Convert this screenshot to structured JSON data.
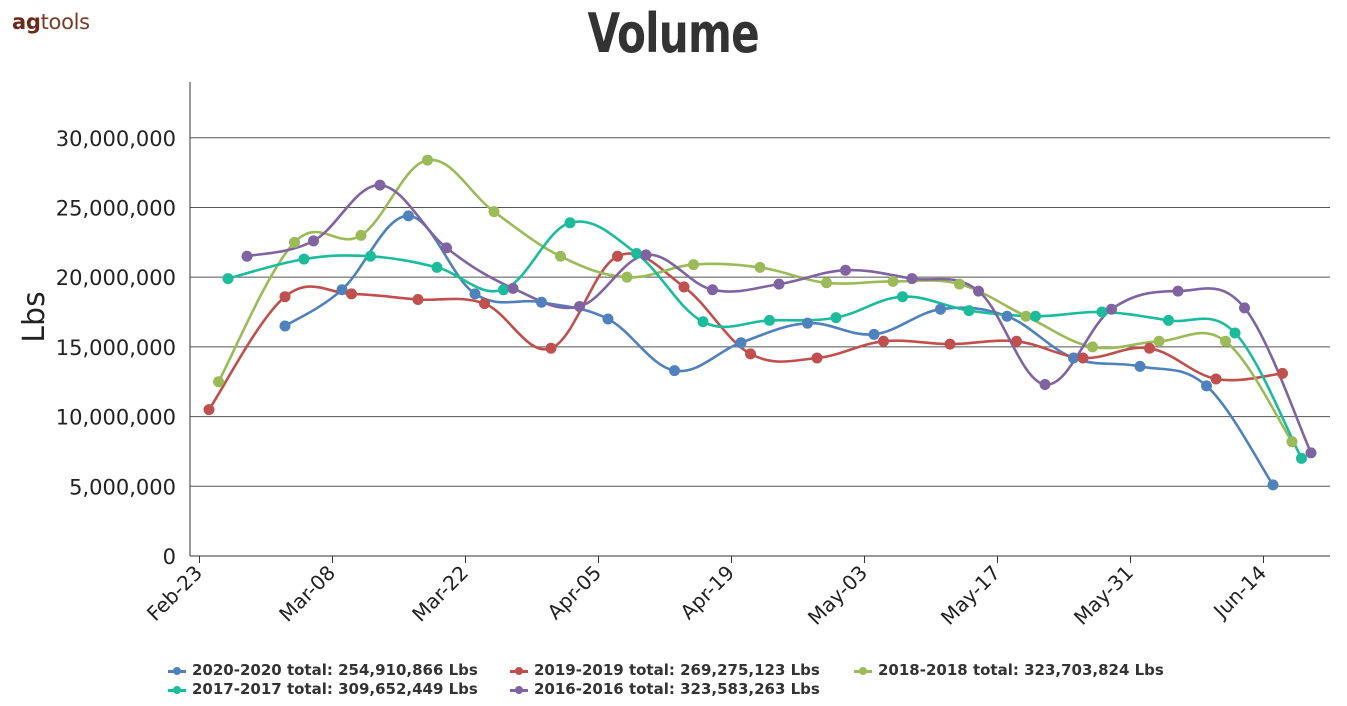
{
  "brand": {
    "part1": "ag",
    "part2": "tools"
  },
  "chart_data": {
    "type": "line",
    "title": "Volume",
    "ylabel": "Lbs",
    "xlabel": "",
    "ylim": [
      0,
      34000000
    ],
    "y_ticks": [
      0,
      5000000,
      10000000,
      15000000,
      20000000,
      25000000,
      30000000
    ],
    "y_tick_labels": [
      "0",
      "5,000,000",
      "10,000,000",
      "15,000,000",
      "20,000,000",
      "25,000,000",
      "30,000,000"
    ],
    "x_axis_start": "2020-02-22",
    "x_axis_end": "2020-06-21",
    "x_ticks": [
      "2020-02-23",
      "2020-03-08",
      "2020-03-22",
      "2020-04-05",
      "2020-04-19",
      "2020-05-03",
      "2020-05-17",
      "2020-05-31",
      "2020-06-14"
    ],
    "x_tick_labels": [
      "Feb-23",
      "Mar-08",
      "Mar-22",
      "Apr-05",
      "Apr-19",
      "May-03",
      "May-17",
      "May-31",
      "Jun-14"
    ],
    "grid": true,
    "legend_position": "bottom",
    "series": [
      {
        "name": "2020-2020",
        "legend_label": "2020-2020 total: 254,910,866 Lbs",
        "color": "#4f81bd",
        "points": [
          {
            "x": "2020-03-03",
            "y": 16500000
          },
          {
            "x": "2020-03-09",
            "y": 19100000
          },
          {
            "x": "2020-03-16",
            "y": 24400000
          },
          {
            "x": "2020-03-23",
            "y": 18800000
          },
          {
            "x": "2020-03-30",
            "y": 18200000
          },
          {
            "x": "2020-04-06",
            "y": 17000000
          },
          {
            "x": "2020-04-13",
            "y": 13300000
          },
          {
            "x": "2020-04-20",
            "y": 15300000
          },
          {
            "x": "2020-04-27",
            "y": 16700000
          },
          {
            "x": "2020-05-04",
            "y": 15900000
          },
          {
            "x": "2020-05-11",
            "y": 17700000
          },
          {
            "x": "2020-05-18",
            "y": 17200000
          },
          {
            "x": "2020-05-25",
            "y": 14200000
          },
          {
            "x": "2020-06-01",
            "y": 13600000
          },
          {
            "x": "2020-06-08",
            "y": 12200000
          },
          {
            "x": "2020-06-15",
            "y": 5100000
          }
        ]
      },
      {
        "name": "2019-2019",
        "legend_label": "2019-2019 total: 269,275,123 Lbs",
        "color": "#c0504d",
        "points": [
          {
            "x": "2020-02-24",
            "y": 10500000
          },
          {
            "x": "2020-03-03",
            "y": 18600000
          },
          {
            "x": "2020-03-10",
            "y": 18800000
          },
          {
            "x": "2020-03-17",
            "y": 18400000
          },
          {
            "x": "2020-03-24",
            "y": 18100000
          },
          {
            "x": "2020-03-31",
            "y": 14900000
          },
          {
            "x": "2020-04-07",
            "y": 21500000
          },
          {
            "x": "2020-04-14",
            "y": 19300000
          },
          {
            "x": "2020-04-21",
            "y": 14500000
          },
          {
            "x": "2020-04-28",
            "y": 14200000
          },
          {
            "x": "2020-05-05",
            "y": 15400000
          },
          {
            "x": "2020-05-12",
            "y": 15200000
          },
          {
            "x": "2020-05-19",
            "y": 15400000
          },
          {
            "x": "2020-05-26",
            "y": 14200000
          },
          {
            "x": "2020-06-02",
            "y": 14900000
          },
          {
            "x": "2020-06-09",
            "y": 12700000
          },
          {
            "x": "2020-06-16",
            "y": 13100000
          }
        ]
      },
      {
        "name": "2018-2018",
        "legend_label": "2018-2018 total: 323,703,824 Lbs",
        "color": "#9bbb59",
        "points": [
          {
            "x": "2020-02-25",
            "y": 12500000
          },
          {
            "x": "2020-03-04",
            "y": 22500000
          },
          {
            "x": "2020-03-11",
            "y": 23000000
          },
          {
            "x": "2020-03-18",
            "y": 28400000
          },
          {
            "x": "2020-03-25",
            "y": 24700000
          },
          {
            "x": "2020-04-01",
            "y": 21500000
          },
          {
            "x": "2020-04-08",
            "y": 20000000
          },
          {
            "x": "2020-04-15",
            "y": 20900000
          },
          {
            "x": "2020-04-22",
            "y": 20700000
          },
          {
            "x": "2020-04-29",
            "y": 19600000
          },
          {
            "x": "2020-05-06",
            "y": 19700000
          },
          {
            "x": "2020-05-13",
            "y": 19500000
          },
          {
            "x": "2020-05-20",
            "y": 17200000
          },
          {
            "x": "2020-05-27",
            "y": 15000000
          },
          {
            "x": "2020-06-03",
            "y": 15400000
          },
          {
            "x": "2020-06-10",
            "y": 15400000
          },
          {
            "x": "2020-06-17",
            "y": 8200000
          }
        ]
      },
      {
        "name": "2017-2017",
        "legend_label": "2017-2017 total: 309,652,449 Lbs",
        "color": "#1abc9c",
        "points": [
          {
            "x": "2020-02-26",
            "y": 19900000
          },
          {
            "x": "2020-03-05",
            "y": 21300000
          },
          {
            "x": "2020-03-12",
            "y": 21500000
          },
          {
            "x": "2020-03-19",
            "y": 20700000
          },
          {
            "x": "2020-03-26",
            "y": 19100000
          },
          {
            "x": "2020-04-02",
            "y": 23900000
          },
          {
            "x": "2020-04-09",
            "y": 21700000
          },
          {
            "x": "2020-04-16",
            "y": 16800000
          },
          {
            "x": "2020-04-23",
            "y": 16900000
          },
          {
            "x": "2020-04-30",
            "y": 17100000
          },
          {
            "x": "2020-05-07",
            "y": 18600000
          },
          {
            "x": "2020-05-14",
            "y": 17600000
          },
          {
            "x": "2020-05-21",
            "y": 17200000
          },
          {
            "x": "2020-05-28",
            "y": 17500000
          },
          {
            "x": "2020-06-04",
            "y": 16900000
          },
          {
            "x": "2020-06-11",
            "y": 16000000
          },
          {
            "x": "2020-06-18",
            "y": 7000000
          }
        ]
      },
      {
        "name": "2016-2016",
        "legend_label": "2016-2016 total: 323,583,263 Lbs",
        "color": "#8064a2",
        "points": [
          {
            "x": "2020-02-28",
            "y": 21500000
          },
          {
            "x": "2020-03-06",
            "y": 22600000
          },
          {
            "x": "2020-03-13",
            "y": 26600000
          },
          {
            "x": "2020-03-20",
            "y": 22100000
          },
          {
            "x": "2020-03-27",
            "y": 19200000
          },
          {
            "x": "2020-04-03",
            "y": 17900000
          },
          {
            "x": "2020-04-10",
            "y": 21600000
          },
          {
            "x": "2020-04-17",
            "y": 19100000
          },
          {
            "x": "2020-04-24",
            "y": 19500000
          },
          {
            "x": "2020-05-01",
            "y": 20500000
          },
          {
            "x": "2020-05-08",
            "y": 19900000
          },
          {
            "x": "2020-05-15",
            "y": 19000000
          },
          {
            "x": "2020-05-22",
            "y": 12300000
          },
          {
            "x": "2020-05-29",
            "y": 17700000
          },
          {
            "x": "2020-06-05",
            "y": 19000000
          },
          {
            "x": "2020-06-12",
            "y": 17800000
          },
          {
            "x": "2020-06-19",
            "y": 7400000
          }
        ]
      }
    ]
  }
}
